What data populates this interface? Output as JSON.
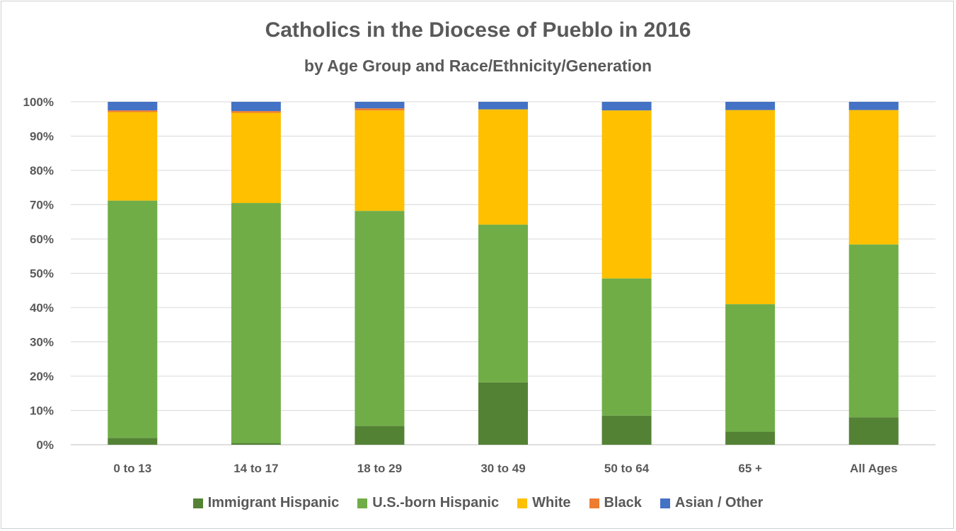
{
  "chart_data": {
    "type": "bar",
    "stacked": true,
    "title": "Catholics in the Diocese of Pueblo in 2016",
    "subtitle": "by Age Group and Race/Ethnicity/Generation",
    "categories": [
      "0 to 13",
      "14 to 17",
      "18 to 29",
      "30 to 49",
      "50 to 64",
      "65 +",
      "All Ages"
    ],
    "ylim": [
      0,
      100
    ],
    "yticks": [
      "0%",
      "10%",
      "20%",
      "30%",
      "40%",
      "50%",
      "60%",
      "70%",
      "80%",
      "90%",
      "100%"
    ],
    "grid": true,
    "legend_position": "bottom",
    "series": [
      {
        "name": "Immigrant Hispanic",
        "color": "#548235",
        "values": [
          2,
          0.5,
          5.5,
          18.2,
          8.5,
          3.8,
          8
        ]
      },
      {
        "name": "U.S.-born Hispanic",
        "color": "#70AD47",
        "values": [
          69.2,
          70,
          62.7,
          46,
          40,
          37.2,
          50.4
        ]
      },
      {
        "name": "White",
        "color": "#FFC000",
        "values": [
          25.8,
          26.3,
          29.3,
          33.6,
          49,
          56.6,
          39.2
        ]
      },
      {
        "name": "Black",
        "color": "#ED7D31",
        "values": [
          0.5,
          0.5,
          0.6,
          0,
          0,
          0,
          0
        ]
      },
      {
        "name": "Asian / Other",
        "color": "#4472C4",
        "values": [
          2.5,
          2.7,
          1.9,
          2.2,
          2.5,
          2.4,
          2.4
        ]
      }
    ]
  }
}
